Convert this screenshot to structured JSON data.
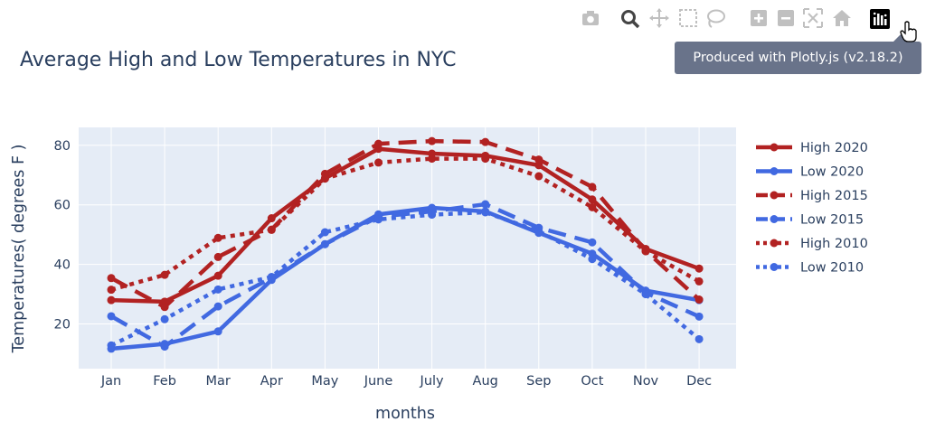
{
  "modebar": {
    "buttons": [
      {
        "name": "camera-icon",
        "tip": "Download plot as a png"
      },
      {
        "name": "zoom-icon",
        "tip": "Zoom"
      },
      {
        "name": "pan-icon",
        "tip": "Pan"
      },
      {
        "name": "box-select-icon",
        "tip": "Box Select"
      },
      {
        "name": "lasso-select-icon",
        "tip": "Lasso Select"
      },
      {
        "name": "zoom-in-icon",
        "tip": "Zoom in"
      },
      {
        "name": "zoom-out-icon",
        "tip": "Zoom out"
      },
      {
        "name": "autoscale-icon",
        "tip": "Autoscale"
      },
      {
        "name": "reset-axes-icon",
        "tip": "Reset axes"
      },
      {
        "name": "plotly-logo-icon",
        "tip": "Produced with Plotly.js (v2.18.2)"
      }
    ],
    "tooltip": "Produced with Plotly.js (v2.18.2)"
  },
  "colors": {
    "plot_bg": "#e5ecf6",
    "grid": "#ffffff",
    "text": "#2a3f5f",
    "high": "#b22222",
    "low": "#4169e1",
    "modebar_icon": "#c0c0c0",
    "modebar_active": "#444444"
  },
  "chart_data": {
    "type": "line",
    "title": "Average High and Low Temperatures in NYC",
    "xlabel": "months",
    "ylabel": "Temperatures( degrees F )",
    "categories": [
      "Jan",
      "Feb",
      "Mar",
      "Apr",
      "May",
      "June",
      "July",
      "Aug",
      "Sep",
      "Oct",
      "Nov",
      "Dec"
    ],
    "ylim": [
      5,
      86
    ],
    "yticks": [
      20,
      40,
      60,
      80
    ],
    "grid": true,
    "legend_position": "right",
    "series": [
      {
        "name": "High 2020",
        "color": "#b22222",
        "dash": "solid",
        "values": [
          28.0,
          27.5,
          36.2,
          55.5,
          68.9,
          78.8,
          77.2,
          76.5,
          73.3,
          61.8,
          45.2,
          38.6
        ]
      },
      {
        "name": " Low 2020",
        "color": "#4169e1",
        "dash": "solid",
        "values": [
          11.7,
          13.3,
          17.5,
          34.8,
          46.8,
          56.8,
          59.0,
          57.8,
          50.6,
          43.6,
          31.2,
          28.0
        ]
      },
      {
        "name": "High 2015",
        "color": "#b22222",
        "dash": "dash",
        "values": [
          35.4,
          25.7,
          42.5,
          51.7,
          70.4,
          80.5,
          81.4,
          81.1,
          75.2,
          66.0,
          44.6,
          28.2
        ]
      },
      {
        "name": "Low 2015",
        "color": "#4169e1",
        "dash": "dash",
        "values": [
          22.6,
          12.4,
          25.9,
          35.5,
          46.8,
          56.0,
          57.8,
          60.2,
          52.3,
          47.4,
          30.5,
          22.5
        ]
      },
      {
        "name": "High 2010",
        "color": "#b22222",
        "dash": "dot",
        "values": [
          31.5,
          36.5,
          48.9,
          51.6,
          68.8,
          74.2,
          75.5,
          75.5,
          69.6,
          59.2,
          44.4,
          34.3
        ]
      },
      {
        "name": "Low 2010",
        "color": "#4169e1",
        "dash": "dot",
        "values": [
          12.8,
          21.6,
          31.6,
          35.8,
          50.8,
          55.1,
          56.7,
          57.5,
          51.1,
          41.8,
          30.0,
          14.9
        ]
      }
    ]
  }
}
